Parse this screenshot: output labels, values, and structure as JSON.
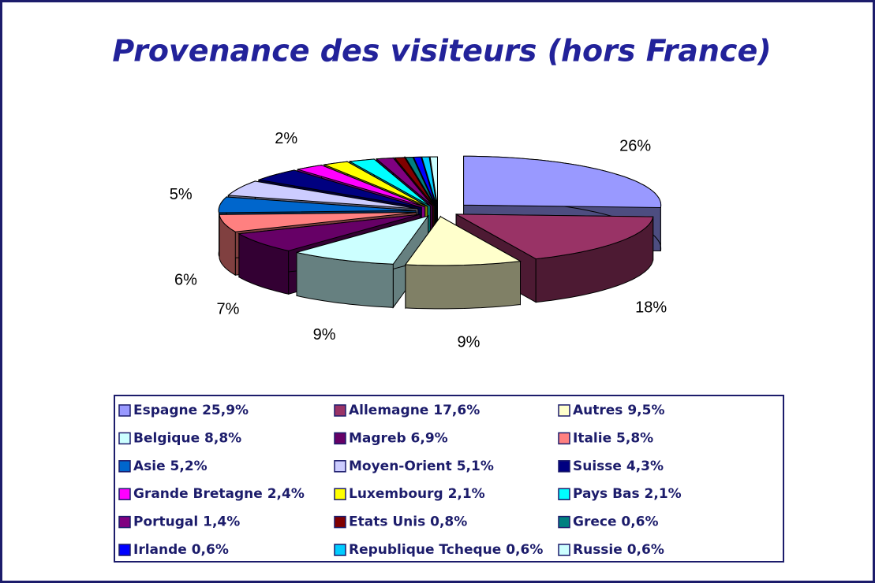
{
  "chart_data": {
    "type": "pie",
    "title": "Provenance des visiteurs (hors France)",
    "categories": [
      "Espagne 25,9%",
      "Allemagne 17,6%",
      "Autres 9,5%",
      "Belgique 8,8%",
      "Magreb 6,9%",
      "Italie 5,8%",
      "Asie 5,2%",
      "Moyen-Orient 5,1%",
      "Suisse 4,3%",
      "Grande Bretagne 2,4%",
      "Luxembourg 2,1%",
      "Pays Bas 2,1%",
      "Portugal 1,4%",
      "Etats Unis 0,8%",
      "Grece 0,6%",
      "Irlande 0,6%",
      "Republique Tcheque 0,6%",
      "Russie 0,6%"
    ],
    "values": [
      25.9,
      17.6,
      9.5,
      8.8,
      6.9,
      5.8,
      5.2,
      5.1,
      4.3,
      2.4,
      2.1,
      2.1,
      1.4,
      0.8,
      0.6,
      0.6,
      0.6,
      0.6
    ],
    "value_labels": [
      "26%",
      "18%",
      "9%",
      "9%",
      "7%",
      "6%",
      "5%",
      null,
      null,
      "2%",
      null,
      null,
      null,
      null,
      null,
      null,
      null,
      null
    ],
    "colors": [
      "#9999ff",
      "#993366",
      "#ffffcc",
      "#ccffff",
      "#660066",
      "#ff8080",
      "#0066cc",
      "#ccccff",
      "#000080",
      "#ff00ff",
      "#ffff00",
      "#00ffff",
      "#800080",
      "#800000",
      "#008080",
      "#0000ff",
      "#00ccff",
      "#ccffff"
    ],
    "legend": "bottom"
  }
}
